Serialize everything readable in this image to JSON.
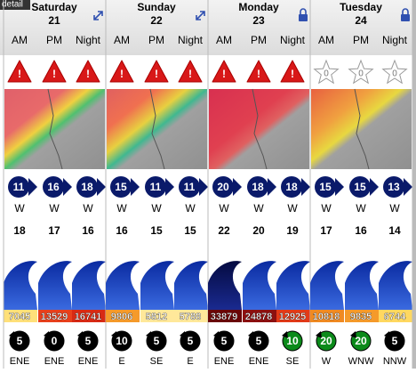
{
  "label": "detail",
  "days": [
    {
      "name": "Saturday",
      "date": 21,
      "icon": "expand",
      "periods": [
        {
          "time": "AM",
          "alert": "!",
          "wind": 11,
          "wind_dir": "W",
          "temp": 18,
          "energy": 7045,
          "energy_color": "#ffe07a",
          "swell": 5,
          "swell_color": "#000000",
          "swell_dir": "ENE"
        },
        {
          "time": "PM",
          "alert": "!",
          "wind": 16,
          "wind_dir": "W",
          "temp": 17,
          "energy": 13529,
          "energy_color": "#e8401c",
          "swell": 0,
          "swell_color": "#000000",
          "swell_dir": "ENE"
        },
        {
          "time": "Night",
          "alert": "!",
          "wind": 18,
          "wind_dir": "W",
          "temp": 16,
          "energy": 16741,
          "energy_color": "#d82a14",
          "swell": 5,
          "swell_color": "#000000",
          "swell_dir": "ENE"
        }
      ]
    },
    {
      "name": "Sunday",
      "date": 22,
      "icon": "expand",
      "periods": [
        {
          "time": "AM",
          "alert": "!",
          "wind": 15,
          "wind_dir": "W",
          "temp": 16,
          "energy": 9806,
          "energy_color": "#f59a2a",
          "swell": 10,
          "swell_color": "#000000",
          "swell_dir": "E"
        },
        {
          "time": "PM",
          "alert": "!",
          "wind": 11,
          "wind_dir": "W",
          "temp": 15,
          "energy": 5812,
          "energy_color": "#ffe89a",
          "swell": 5,
          "swell_color": "#000000",
          "swell_dir": "SE"
        },
        {
          "time": "Night",
          "alert": "!",
          "wind": 11,
          "wind_dir": "W",
          "temp": 15,
          "energy": 5788,
          "energy_color": "#ffe89a",
          "swell": 5,
          "swell_color": "#000000",
          "swell_dir": "E"
        }
      ]
    },
    {
      "name": "Monday",
      "date": 23,
      "icon": "lock",
      "periods": [
        {
          "time": "AM",
          "alert": "!",
          "wind": 20,
          "wind_dir": "W",
          "temp": 22,
          "energy": 33879,
          "energy_color": "#6a0606",
          "swell": 5,
          "swell_color": "#000000",
          "swell_dir": "ENE"
        },
        {
          "time": "PM",
          "alert": "!",
          "wind": 18,
          "wind_dir": "W",
          "temp": 20,
          "energy": 24878,
          "energy_color": "#8c1010",
          "swell": 5,
          "swell_color": "#000000",
          "swell_dir": "ENE"
        },
        {
          "time": "Night",
          "alert": "!",
          "wind": 18,
          "wind_dir": "W",
          "temp": 19,
          "energy": 12925,
          "energy_color": "#e23a18",
          "swell": 10,
          "swell_color": "#0b8a1a",
          "swell_dir": "SE"
        }
      ]
    },
    {
      "name": "Tuesday",
      "date": 24,
      "icon": "lock",
      "periods": [
        {
          "time": "AM",
          "alert": "0",
          "wind": 15,
          "wind_dir": "W",
          "temp": 17,
          "energy": 10818,
          "energy_color": "#f08a22",
          "swell": 20,
          "swell_color": "#0b8a1a",
          "swell_dir": "W"
        },
        {
          "time": "PM",
          "alert": "0",
          "wind": 15,
          "wind_dir": "W",
          "temp": 16,
          "energy": 9835,
          "energy_color": "#f59a2a",
          "swell": 20,
          "swell_color": "#0b8a1a",
          "swell_dir": "WNW"
        },
        {
          "time": "Night",
          "alert": "0",
          "wind": 13,
          "wind_dir": "W",
          "temp": 14,
          "energy": 6744,
          "energy_color": "#ffd860",
          "swell": 5,
          "swell_color": "#000000",
          "swell_dir": "NNW"
        }
      ]
    }
  ]
}
